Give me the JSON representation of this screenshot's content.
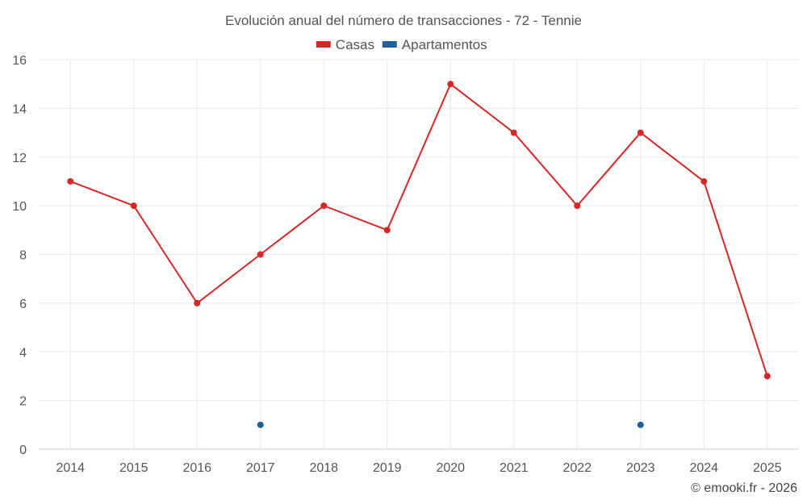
{
  "chart_data": {
    "type": "line",
    "title": "Evolución anual del número de transacciones - 72 - Tennie",
    "xlabel": "",
    "ylabel": "",
    "categories": [
      "2014",
      "2015",
      "2016",
      "2017",
      "2018",
      "2019",
      "2020",
      "2021",
      "2022",
      "2023",
      "2024",
      "2025"
    ],
    "ylim": [
      0,
      16
    ],
    "yticks": [
      0,
      2,
      4,
      6,
      8,
      10,
      12,
      14,
      16
    ],
    "grid": true,
    "legend_position": "top-center",
    "series": [
      {
        "name": "Casas",
        "color": "#d62728",
        "values": [
          11,
          10,
          6,
          8,
          10,
          9,
          15,
          13,
          10,
          13,
          11,
          3
        ],
        "line": true
      },
      {
        "name": "Apartamentos",
        "color": "#1f5f99",
        "values": [
          null,
          null,
          null,
          1,
          null,
          null,
          null,
          null,
          null,
          1,
          null,
          null
        ],
        "line": false
      }
    ]
  },
  "credit": "© emooki.fr - 2026"
}
